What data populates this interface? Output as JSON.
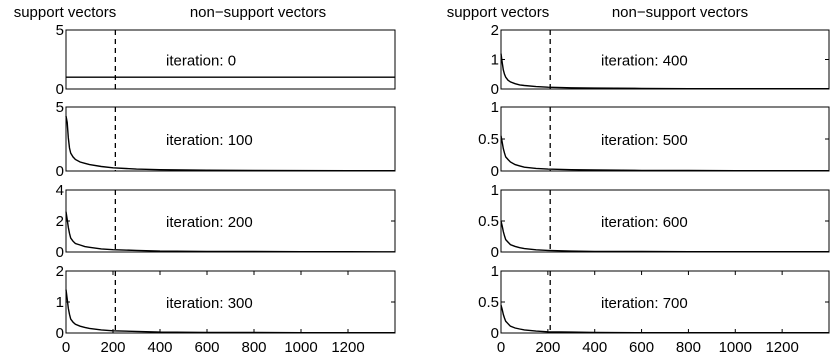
{
  "figure": {
    "header_left": "support vectors",
    "header_right": "non−support vectors"
  },
  "chart_data": [
    {
      "type": "line",
      "column": "left",
      "annotation": "iteration: 0",
      "xlim": [
        0,
        1400
      ],
      "ylim": [
        0,
        5
      ],
      "yticks": [
        {
          "value": 0,
          "label": "0"
        },
        {
          "value": 5,
          "label": "5"
        }
      ],
      "xticks": [],
      "separator_x": 210,
      "series": [
        {
          "x": [
            0,
            1400
          ],
          "values": [
            1,
            1
          ]
        }
      ]
    },
    {
      "type": "line",
      "column": "left",
      "annotation": "iteration: 100",
      "xlim": [
        0,
        1400
      ],
      "ylim": [
        0,
        5
      ],
      "yticks": [
        {
          "value": 0,
          "label": "0"
        },
        {
          "value": 5,
          "label": "5"
        }
      ],
      "xticks": [],
      "separator_x": 210,
      "series": [
        {
          "x": [
            0,
            5,
            10,
            15,
            20,
            30,
            40,
            60,
            80,
            100,
            150,
            200,
            300,
            400,
            600,
            800,
            1000,
            1200,
            1400
          ],
          "values": [
            4.3,
            3.8,
            2.6,
            1.8,
            1.4,
            1.1,
            0.9,
            0.7,
            0.6,
            0.5,
            0.35,
            0.25,
            0.15,
            0.1,
            0.06,
            0.04,
            0.03,
            0.02,
            0.02
          ]
        }
      ]
    },
    {
      "type": "line",
      "column": "left",
      "annotation": "iteration: 200",
      "xlim": [
        0,
        1400
      ],
      "ylim": [
        0,
        4
      ],
      "yticks": [
        {
          "value": 0,
          "label": "0"
        },
        {
          "value": 2,
          "label": "2"
        },
        {
          "value": 4,
          "label": "4"
        }
      ],
      "xticks": [],
      "separator_x": 210,
      "series": [
        {
          "x": [
            0,
            5,
            10,
            15,
            20,
            30,
            40,
            60,
            80,
            100,
            150,
            200,
            300,
            400,
            600,
            800,
            1000,
            1200,
            1400
          ],
          "values": [
            2.6,
            2.1,
            1.6,
            1.2,
            0.9,
            0.7,
            0.55,
            0.45,
            0.35,
            0.3,
            0.2,
            0.15,
            0.1,
            0.06,
            0.04,
            0.03,
            0.02,
            0.02,
            0.01
          ]
        }
      ]
    },
    {
      "type": "line",
      "column": "left",
      "annotation": "iteration: 300",
      "xlim": [
        0,
        1400
      ],
      "ylim": [
        0,
        2
      ],
      "yticks": [
        {
          "value": 0,
          "label": "0"
        },
        {
          "value": 1,
          "label": "1"
        },
        {
          "value": 2,
          "label": "2"
        }
      ],
      "xticks": [
        {
          "value": 0,
          "label": "0"
        },
        {
          "value": 200,
          "label": "200"
        },
        {
          "value": 400,
          "label": "400"
        },
        {
          "value": 600,
          "label": "600"
        },
        {
          "value": 800,
          "label": "800"
        },
        {
          "value": 1000,
          "label": "1000"
        },
        {
          "value": 1200,
          "label": "1200"
        }
      ],
      "separator_x": 210,
      "series": [
        {
          "x": [
            0,
            5,
            10,
            15,
            20,
            30,
            40,
            60,
            80,
            100,
            150,
            200,
            300,
            400,
            600,
            800,
            1000,
            1200,
            1400
          ],
          "values": [
            1.4,
            1.1,
            0.8,
            0.6,
            0.45,
            0.35,
            0.28,
            0.22,
            0.18,
            0.15,
            0.1,
            0.07,
            0.05,
            0.03,
            0.02,
            0.02,
            0.01,
            0.01,
            0.01
          ]
        }
      ]
    },
    {
      "type": "line",
      "column": "right",
      "annotation": "iteration: 400",
      "xlim": [
        0,
        1400
      ],
      "ylim": [
        0,
        2
      ],
      "yticks": [
        {
          "value": 0,
          "label": "0"
        },
        {
          "value": 1,
          "label": "1"
        },
        {
          "value": 2,
          "label": "2"
        }
      ],
      "xticks": [],
      "separator_x": 210,
      "series": [
        {
          "x": [
            0,
            5,
            10,
            15,
            20,
            30,
            40,
            60,
            80,
            100,
            150,
            200,
            300,
            400,
            600,
            800,
            1000,
            1200,
            1400
          ],
          "values": [
            1.2,
            0.9,
            0.65,
            0.5,
            0.4,
            0.3,
            0.24,
            0.18,
            0.14,
            0.12,
            0.08,
            0.06,
            0.04,
            0.03,
            0.02,
            0.01,
            0.01,
            0.01,
            0.01
          ]
        }
      ]
    },
    {
      "type": "line",
      "column": "right",
      "annotation": "iteration: 500",
      "xlim": [
        0,
        1400
      ],
      "ylim": [
        0,
        1
      ],
      "yticks": [
        {
          "value": 0,
          "label": "0"
        },
        {
          "value": 0.5,
          "label": "0.5"
        },
        {
          "value": 1,
          "label": "1"
        }
      ],
      "xticks": [],
      "separator_x": 210,
      "series": [
        {
          "x": [
            0,
            5,
            10,
            15,
            20,
            30,
            40,
            60,
            80,
            100,
            150,
            200,
            300,
            400,
            600,
            800,
            1000,
            1200,
            1400
          ],
          "values": [
            0.55,
            0.45,
            0.35,
            0.28,
            0.22,
            0.18,
            0.14,
            0.1,
            0.08,
            0.06,
            0.04,
            0.03,
            0.02,
            0.015,
            0.01,
            0.01,
            0.005,
            0.005,
            0.005
          ]
        }
      ]
    },
    {
      "type": "line",
      "column": "right",
      "annotation": "iteration: 600",
      "xlim": [
        0,
        1400
      ],
      "ylim": [
        0,
        1
      ],
      "yticks": [
        {
          "value": 0,
          "label": "0"
        },
        {
          "value": 0.5,
          "label": "0.5"
        },
        {
          "value": 1,
          "label": "1"
        }
      ],
      "xticks": [],
      "separator_x": 210,
      "series": [
        {
          "x": [
            0,
            5,
            10,
            15,
            20,
            30,
            40,
            60,
            80,
            100,
            150,
            200,
            300,
            400,
            600,
            800,
            1000,
            1200,
            1400
          ],
          "values": [
            0.5,
            0.42,
            0.33,
            0.26,
            0.2,
            0.16,
            0.12,
            0.09,
            0.07,
            0.055,
            0.035,
            0.025,
            0.015,
            0.01,
            0.01,
            0.005,
            0.005,
            0.005,
            0.005
          ]
        }
      ]
    },
    {
      "type": "line",
      "column": "right",
      "annotation": "iteration: 700",
      "xlim": [
        0,
        1400
      ],
      "ylim": [
        0,
        1
      ],
      "yticks": [
        {
          "value": 0,
          "label": "0"
        },
        {
          "value": 0.5,
          "label": "0.5"
        },
        {
          "value": 1,
          "label": "1"
        }
      ],
      "xticks": [
        {
          "value": 0,
          "label": "0"
        },
        {
          "value": 200,
          "label": "200"
        },
        {
          "value": 400,
          "label": "400"
        },
        {
          "value": 600,
          "label": "600"
        },
        {
          "value": 800,
          "label": "800"
        },
        {
          "value": 1000,
          "label": "1000"
        },
        {
          "value": 1200,
          "label": "1200"
        }
      ],
      "separator_x": 210,
      "series": [
        {
          "x": [
            0,
            5,
            10,
            15,
            20,
            30,
            40,
            60,
            80,
            100,
            150,
            200,
            300,
            400,
            600,
            800,
            1000,
            1200,
            1400
          ],
          "values": [
            0.45,
            0.38,
            0.3,
            0.24,
            0.19,
            0.15,
            0.11,
            0.08,
            0.065,
            0.05,
            0.03,
            0.02,
            0.015,
            0.01,
            0.005,
            0.005,
            0.005,
            0.005,
            0.005
          ]
        }
      ]
    }
  ]
}
